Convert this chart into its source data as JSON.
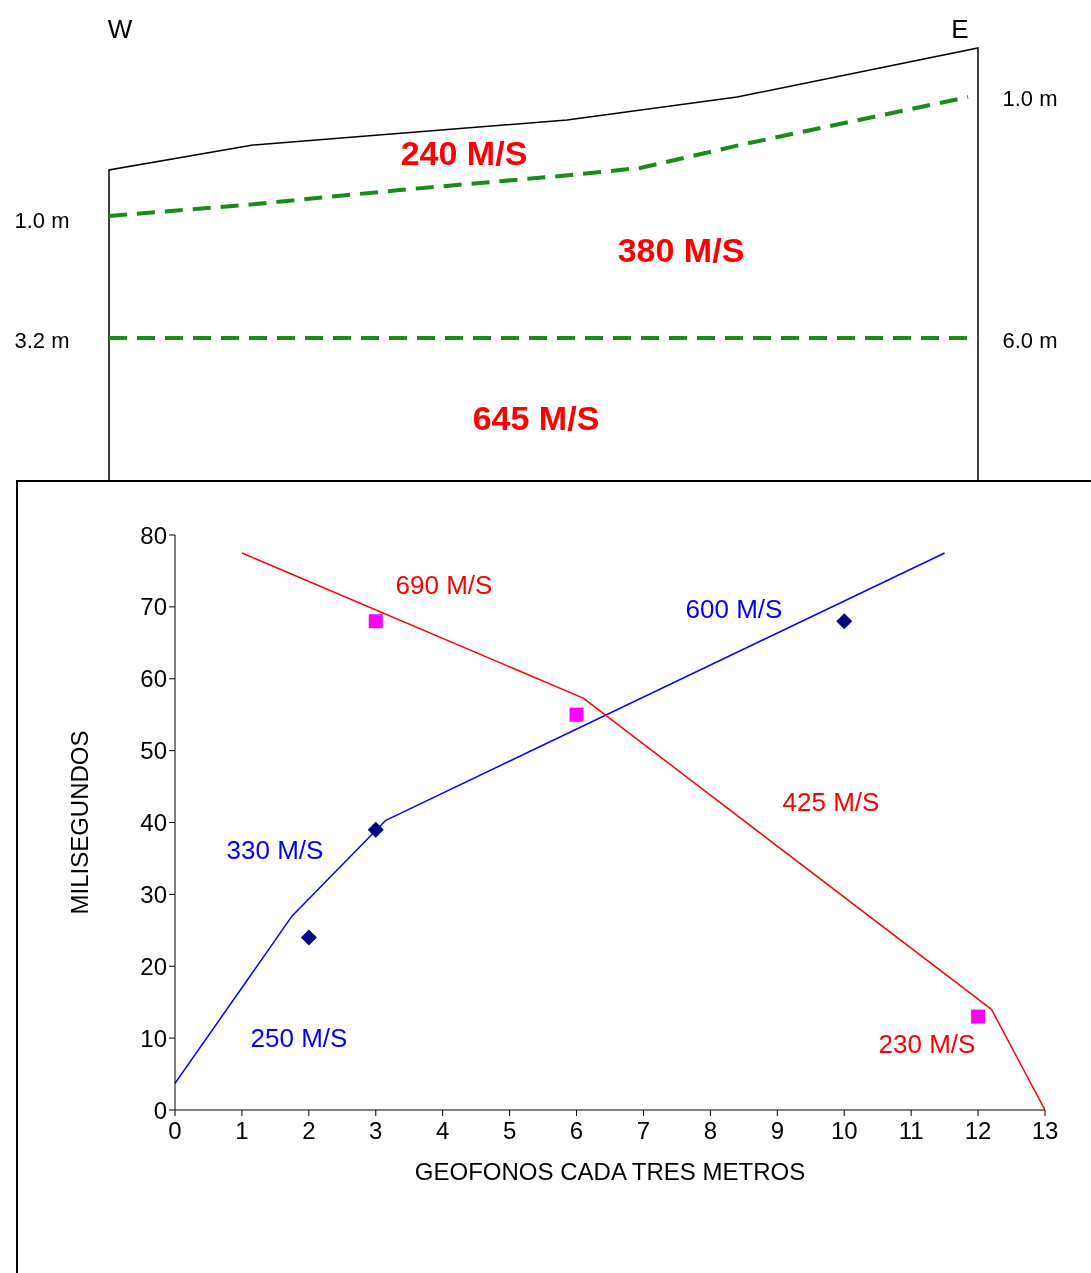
{
  "chart_data": [
    {
      "type": "other",
      "annotations": [
        "W",
        "E",
        "1.0 m",
        "3.2 m",
        "1.0 m",
        "6.0 m",
        "240 M/S",
        "380 M/S",
        "645 M/S"
      ]
    },
    {
      "type": "line",
      "xlabel": "GEOFONOS CADA TRES METROS",
      "ylabel": "MILISEGUNDOS",
      "xlim": [
        0,
        13
      ],
      "xticks": [
        0,
        1,
        2,
        3,
        4,
        5,
        6,
        7,
        8,
        9,
        10,
        11,
        12,
        13
      ],
      "ylim": [
        0,
        80
      ],
      "yticks": [
        0,
        10,
        20,
        30,
        40,
        50,
        60,
        70,
        80
      ],
      "grid": false,
      "series": [
        {
          "type": "line",
          "color": "#0000ff",
          "marker": "none",
          "x": [
            0,
            1.75,
            3.15,
            11.5
          ],
          "values": [
            3.7,
            27,
            40.3,
            77.5
          ]
        },
        {
          "type": "line",
          "color": "#ff0000",
          "marker": "none",
          "x": [
            1,
            6.1,
            12.2,
            13
          ],
          "values": [
            77.5,
            57.3,
            14,
            0
          ]
        },
        {
          "type": "scatter",
          "color": "#000080",
          "marker": "diamond",
          "x": [
            2,
            3,
            10
          ],
          "values": [
            24,
            39,
            68
          ]
        },
        {
          "type": "scatter",
          "color": "#ff00ff",
          "marker": "square",
          "x": [
            3,
            6,
            12
          ],
          "values": [
            68,
            55,
            13
          ]
        }
      ],
      "annotations": [
        "690 M/S",
        "600 M/S",
        "330 M/S",
        "425 M/S",
        "250 M/S",
        "230 M/S"
      ]
    }
  ]
}
